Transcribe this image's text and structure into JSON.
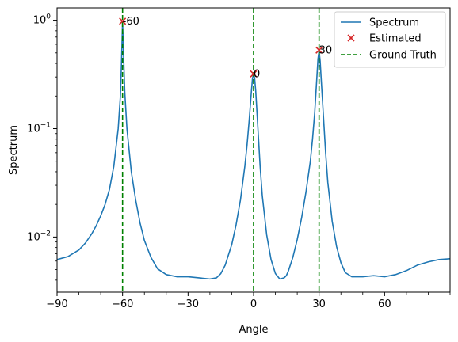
{
  "chart_data": {
    "type": "line",
    "xlabel": "Angle",
    "ylabel": "Spectrum",
    "xlim": [
      -90,
      90
    ],
    "ylim": [
      0.0031,
      1.3
    ],
    "yscale": "log",
    "grid": false,
    "legend_position": "top-right",
    "x_ticks": [
      -90,
      -60,
      -30,
      0,
      30,
      60
    ],
    "x_tick_labels": [
      "−90",
      "−60",
      "−30",
      "0",
      "30",
      "60"
    ],
    "y_ticks": [
      0.01,
      0.1,
      1
    ],
    "y_tick_labels": [
      {
        "base": "10",
        "exp": "−2"
      },
      {
        "base": "10",
        "exp": "−1"
      },
      {
        "base": "10",
        "exp": "0"
      }
    ],
    "series": [
      {
        "name": "Spectrum",
        "kind": "line",
        "color": "#1f77b4",
        "x": [
          -90,
          -85,
          -80,
          -77,
          -74,
          -72,
          -70,
          -68,
          -66,
          -64,
          -62,
          -61,
          -60.5,
          -60,
          -59.5,
          -59,
          -58,
          -56,
          -54,
          -52,
          -50,
          -47,
          -44,
          -40,
          -35,
          -30,
          -25,
          -20,
          -17,
          -15,
          -13,
          -10,
          -8,
          -6,
          -4,
          -3,
          -2,
          -1,
          -0.5,
          0,
          0.5,
          1,
          2,
          3,
          4,
          6,
          8,
          10,
          12,
          14,
          15,
          16,
          18,
          20,
          22,
          24,
          26,
          27,
          28,
          29,
          29.5,
          30,
          30.5,
          31,
          32,
          33,
          34,
          36,
          38,
          40,
          42,
          45,
          50,
          55,
          60,
          65,
          70,
          75,
          80,
          85,
          90
        ],
        "y": [
          0.0062,
          0.0066,
          0.0076,
          0.0088,
          0.0108,
          0.0128,
          0.0157,
          0.02,
          0.0275,
          0.045,
          0.1,
          0.2,
          0.4,
          0.96,
          0.45,
          0.22,
          0.1,
          0.04,
          0.022,
          0.0135,
          0.0093,
          0.0065,
          0.0051,
          0.0045,
          0.0043,
          0.0043,
          0.0042,
          0.0041,
          0.0042,
          0.0046,
          0.0055,
          0.0085,
          0.013,
          0.022,
          0.045,
          0.07,
          0.12,
          0.22,
          0.29,
          0.32,
          0.29,
          0.22,
          0.1,
          0.045,
          0.024,
          0.0105,
          0.0062,
          0.0046,
          0.0041,
          0.0042,
          0.0044,
          0.0049,
          0.0065,
          0.0095,
          0.015,
          0.026,
          0.05,
          0.08,
          0.14,
          0.3,
          0.44,
          0.52,
          0.42,
          0.28,
          0.13,
          0.06,
          0.032,
          0.014,
          0.0082,
          0.0058,
          0.0047,
          0.0043,
          0.0043,
          0.0044,
          0.0043,
          0.0045,
          0.0049,
          0.0055,
          0.0059,
          0.0062,
          0.0063
        ]
      },
      {
        "name": "Estimated",
        "kind": "scatter",
        "marker": "x",
        "color": "#d62728",
        "x": [
          -60,
          0,
          30
        ],
        "y": [
          0.98,
          0.32,
          0.53
        ]
      },
      {
        "name": "Ground Truth",
        "kind": "vline",
        "color": "#008000",
        "x": [
          -60,
          0,
          30
        ]
      }
    ],
    "annotations": [
      {
        "text": "-60",
        "x": -60,
        "y": 0.98
      },
      {
        "text": "0",
        "x": 0,
        "y": 0.32
      },
      {
        "text": "30",
        "x": 30,
        "y": 0.53
      }
    ]
  }
}
